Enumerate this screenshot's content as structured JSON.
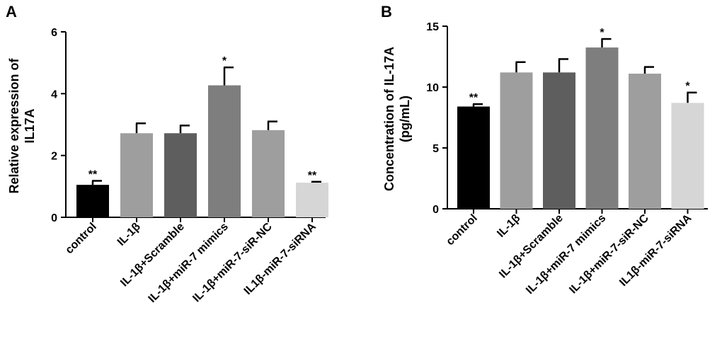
{
  "chart_data": [
    {
      "panel": "A",
      "type": "bar",
      "title": "",
      "xlabel": "",
      "ylabel_lines": [
        "Relative  expression of",
        "IL17A"
      ],
      "categories": [
        "control",
        "IL-1β",
        "IL-1β+Scramble",
        "IL-1β+miR-7 mimics",
        "IL-1β+miR-7-siR-NC",
        "IL1β-miR-7-siRNA"
      ],
      "values": [
        1.05,
        2.72,
        2.72,
        4.27,
        2.82,
        1.12
      ],
      "errors": [
        0.13,
        0.32,
        0.25,
        0.58,
        0.28,
        0.03
      ],
      "significance": [
        "**",
        "",
        "",
        "*",
        "",
        "**"
      ],
      "colors": [
        "#000000",
        "#9e9e9e",
        "#5e5e5e",
        "#7e7e7e",
        "#9e9e9e",
        "#d6d6d6"
      ],
      "ylim": [
        0,
        6
      ],
      "yticks": [
        0,
        2,
        4,
        6
      ],
      "yticklabels": [
        "0",
        "2",
        "4",
        "6"
      ],
      "grid": false
    },
    {
      "panel": "B",
      "type": "bar",
      "title": "",
      "xlabel": "",
      "ylabel_lines": [
        "Concentration of IL-17A",
        "(pg/mL)"
      ],
      "categories": [
        "control",
        "IL-1β",
        "IL-1β+Scramble",
        "IL-1β+miR-7 mimics",
        "IL-1β+miR-7-siR-NC",
        "IL1β-miR-7-siRNA"
      ],
      "values": [
        8.4,
        11.2,
        11.2,
        13.25,
        11.1,
        8.7
      ],
      "errors": [
        0.2,
        0.85,
        1.1,
        0.7,
        0.55,
        0.85
      ],
      "significance": [
        "**",
        "",
        "",
        "*",
        "",
        "*"
      ],
      "colors": [
        "#000000",
        "#9e9e9e",
        "#5e5e5e",
        "#7e7e7e",
        "#9e9e9e",
        "#d6d6d6"
      ],
      "ylim": [
        0,
        15
      ],
      "yticks": [
        0,
        5,
        10,
        15
      ],
      "yticklabels": [
        "0",
        "5",
        "10",
        "15"
      ],
      "grid": false
    }
  ]
}
